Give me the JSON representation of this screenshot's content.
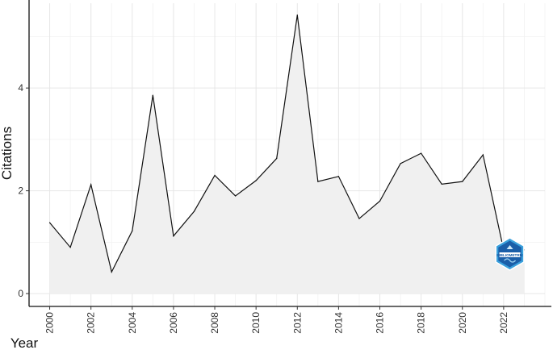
{
  "chart_data": {
    "type": "area",
    "xlabel": "Year",
    "ylabel": "Citations",
    "xlim": [
      1999.0,
      2024.0
    ],
    "ylim": [
      -0.25,
      5.65
    ],
    "x_ticks": [
      2000,
      2002,
      2004,
      2006,
      2008,
      2010,
      2012,
      2014,
      2016,
      2018,
      2020,
      2022
    ],
    "y_ticks": [
      0,
      2,
      4
    ],
    "x_tick_labels": [
      "2000",
      "2002",
      "2004",
      "2006",
      "2008",
      "2010",
      "2012",
      "2014",
      "2016",
      "2018",
      "2020",
      "2022"
    ],
    "y_tick_labels": [
      "0",
      "2",
      "4"
    ],
    "grid": true,
    "line_color": "#111111",
    "area_color": "#f0f0f0",
    "series": [
      {
        "x": [
          2000,
          2001,
          2002,
          2003,
          2004,
          2005,
          2006,
          2007,
          2008,
          2009,
          2010,
          2011,
          2012,
          2013,
          2014,
          2015,
          2016,
          2017,
          2018,
          2019,
          2020,
          2021,
          2022,
          2023
        ],
        "values": [
          1.38,
          0.9,
          2.12,
          0.42,
          1.22,
          3.86,
          1.12,
          1.6,
          2.3,
          1.9,
          2.2,
          2.63,
          5.42,
          2.18,
          2.28,
          1.46,
          1.8,
          2.53,
          2.73,
          2.13,
          2.18,
          2.7,
          0.85,
          0.85
        ]
      }
    ]
  },
  "logo": {
    "name": "bibliometrix-logo-icon",
    "text": "BIBLIOMETRIX",
    "x": 2022.3,
    "y": 0.77,
    "color_dark": "#1a5ea8",
    "color_light": "#3aa0dc"
  }
}
